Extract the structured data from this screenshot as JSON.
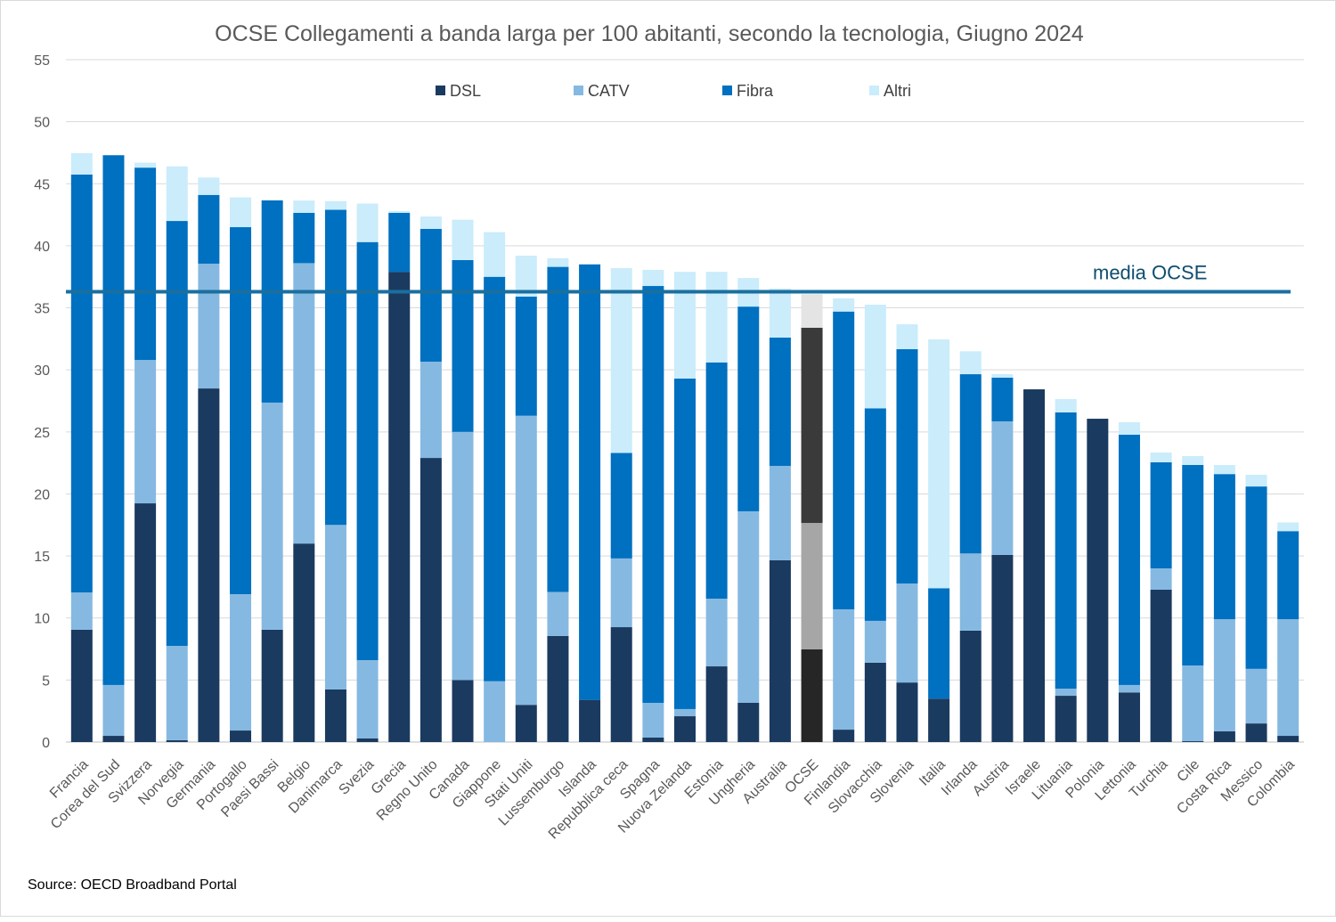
{
  "chart_data": {
    "type": "bar",
    "stacked": true,
    "title": "OCSE Collegamenti a banda larga per 100 abitanti, secondo la tecnologia, Giugno 2024",
    "xlabel": "",
    "ylabel": "",
    "ylim": [
      0,
      55
    ],
    "yticks": [
      0,
      5,
      10,
      15,
      20,
      25,
      30,
      35,
      40,
      45,
      50,
      55
    ],
    "grid": true,
    "legend_position": "top-center",
    "categories": [
      "Francia",
      "Corea del Sud",
      "Svizzera",
      "Norvegia",
      "Germania",
      "Portogallo",
      "Paesi Bassi",
      "Belgio",
      "Danimarca",
      "Svezia",
      "Grecia",
      "Regno Unito",
      "Canada",
      "Giappone",
      "Stati Uniti",
      "Lussemburgo",
      "Islanda",
      "Repubblica ceca",
      "Spagna",
      "Nuova Zelanda",
      "Estonia",
      "Ungheria",
      "Australia",
      "OCSE",
      "Finlandia",
      "Slovacchia",
      "Slovenia",
      "Italia",
      "Irlanda",
      "Austria",
      "Israele",
      "Lituania",
      "Polonia",
      "Lettonia",
      "Turchia",
      "Cile",
      "Costa Rica",
      "Messico",
      "Colombia"
    ],
    "highlight_category": "OCSE",
    "series": [
      {
        "name": "DSL",
        "color": "#1b3a5f",
        "highlight_color": "#262626",
        "values": [
          9.05,
          0.5,
          19.24,
          0.15,
          28.5,
          0.93,
          9.05,
          16.0,
          4.24,
          0.3,
          37.9,
          22.9,
          5.0,
          0,
          3.0,
          8.55,
          3.4,
          9.26,
          0.36,
          2.08,
          6.1,
          3.16,
          14.65,
          7.47,
          1.0,
          6.4,
          4.8,
          3.5,
          8.98,
          15.08,
          28.43,
          3.73,
          26.06,
          4.0,
          12.28,
          0.07,
          0.86,
          1.5,
          0.5
        ]
      },
      {
        "name": "CATV",
        "color": "#86b9e1",
        "highlight_color": "#a6a6a6",
        "values": [
          3.01,
          4.1,
          11.56,
          7.6,
          10.06,
          10.99,
          18.31,
          22.6,
          13.26,
          6.3,
          0,
          7.76,
          20.0,
          4.9,
          23.3,
          3.55,
          0,
          5.54,
          2.8,
          0.58,
          5.46,
          15.44,
          7.61,
          10.19,
          9.7,
          3.37,
          7.98,
          0,
          6.22,
          10.77,
          0,
          0.57,
          0,
          0.6,
          1.72,
          6.1,
          9.04,
          4.4,
          9.4
        ]
      },
      {
        "name": "Fibra",
        "color": "#0070c0",
        "highlight_color": "#3a3a3a",
        "values": [
          33.68,
          42.7,
          15.5,
          34.25,
          5.54,
          29.58,
          16.3,
          4.05,
          25.4,
          33.7,
          4.75,
          10.7,
          13.85,
          32.6,
          9.6,
          26.2,
          35.1,
          8.5,
          33.6,
          26.64,
          19.04,
          16.5,
          10.34,
          15.74,
          24.0,
          17.13,
          18.89,
          8.9,
          14.45,
          3.52,
          0,
          22.27,
          0,
          20.17,
          8.55,
          16.16,
          11.7,
          14.7,
          7.1
        ]
      },
      {
        "name": "Altri",
        "color": "#caecfb",
        "highlight_color": "#e4e4e4",
        "values": [
          1.72,
          0,
          0.4,
          4.4,
          1.4,
          2.4,
          0,
          1.0,
          0.7,
          3.1,
          0.15,
          1.0,
          3.25,
          3.6,
          3.3,
          0.7,
          0,
          14.9,
          1.3,
          8.6,
          7.3,
          2.3,
          3.95,
          2.7,
          1.06,
          8.35,
          2.0,
          20.05,
          1.85,
          0.28,
          0,
          1.07,
          0,
          1.01,
          0.79,
          0.72,
          0.73,
          0.94,
          0.7
        ]
      }
    ],
    "reference_line": {
      "label": "media OCSE",
      "value": 36.3,
      "color": "#1a6f9f",
      "label_color": "#0e4d6e"
    }
  },
  "source": "Source: OECD Broadband Portal"
}
